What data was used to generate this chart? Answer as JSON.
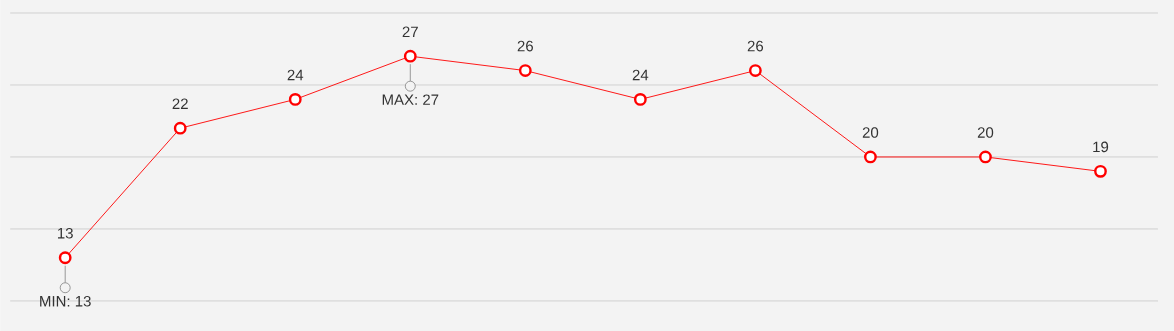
{
  "chart_data": {
    "type": "line",
    "categories": [
      null,
      null,
      null,
      null,
      null,
      null,
      null,
      null,
      null,
      null
    ],
    "series": [
      {
        "color": "#ff0000",
        "values": [
          13,
          22,
          24,
          27,
          26,
          24,
          26,
          20,
          20,
          19
        ]
      }
    ],
    "ylim": [
      10,
      30
    ],
    "yticks": [
      {
        "value": 10,
        "label": null
      },
      {
        "value": 15,
        "label": null
      },
      {
        "value": 20,
        "label": null
      },
      {
        "value": 25,
        "label": null
      },
      {
        "value": 30,
        "label": null
      }
    ],
    "grid": "y",
    "marker": "circle",
    "line_style": "solid",
    "data_labels": true,
    "annotations": [
      {
        "text": "MIN: 13",
        "y": 13
      },
      {
        "text": "MAX: 27",
        "y": 27
      }
    ]
  }
}
